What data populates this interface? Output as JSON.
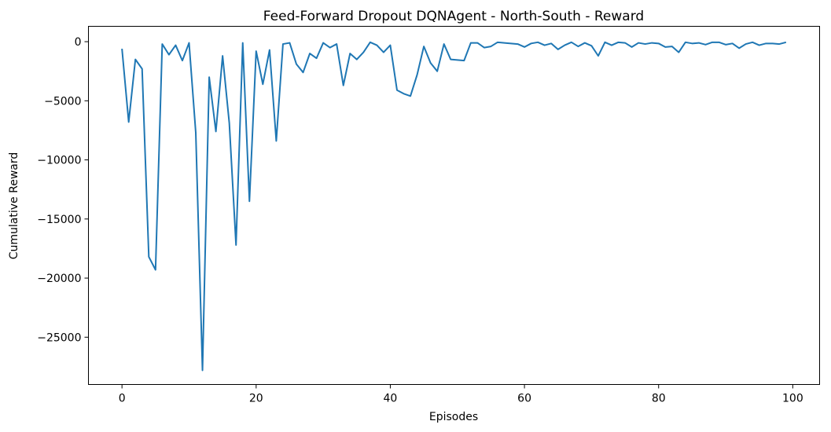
{
  "chart_data": {
    "type": "line",
    "title": "Feed-Forward Dropout DQNAgent - North-South - Reward",
    "xlabel": "Episodes",
    "ylabel": "Cumulative Reward",
    "xlim": [
      -5,
      104
    ],
    "ylim": [
      -29000,
      1300
    ],
    "xticks": [
      0,
      20,
      40,
      60,
      80,
      100
    ],
    "yticks": [
      0,
      -5000,
      -10000,
      -15000,
      -20000,
      -25000
    ],
    "xtick_labels": [
      "0",
      "20",
      "40",
      "60",
      "80",
      "100"
    ],
    "ytick_labels": [
      "0",
      "−5000",
      "−10000",
      "−15000",
      "−20000",
      "−25000"
    ],
    "grid": false,
    "line_color": "#1f77b4",
    "series": [
      {
        "x": [
          0,
          1,
          2,
          3,
          4,
          5,
          6,
          7,
          8,
          9,
          10,
          11,
          12,
          13,
          14,
          15,
          16,
          17,
          18,
          19,
          20,
          21,
          22,
          23,
          24,
          25,
          26,
          27,
          28,
          29,
          30,
          31,
          32,
          33,
          34,
          35,
          36,
          37,
          38,
          39,
          40,
          41,
          42,
          43,
          44,
          45,
          46,
          47,
          48,
          49,
          50,
          51,
          52,
          53,
          54,
          55,
          56,
          57,
          58,
          59,
          60,
          61,
          62,
          63,
          64,
          65,
          66,
          67,
          68,
          69,
          70,
          71,
          72,
          73,
          74,
          75,
          76,
          77,
          78,
          79,
          80,
          81,
          82,
          83,
          84,
          85,
          86,
          87,
          88,
          89,
          90,
          91,
          92,
          93,
          94,
          95,
          96,
          97,
          98,
          99
        ],
        "values": [
          -600,
          -6800,
          -1500,
          -2300,
          -18200,
          -19300,
          -200,
          -1100,
          -300,
          -1600,
          -100,
          -7700,
          -27800,
          -3000,
          -7600,
          -1200,
          -6900,
          -17200,
          -100,
          -13500,
          -800,
          -3600,
          -700,
          -8400,
          -200,
          -100,
          -1900,
          -2600,
          -1000,
          -1400,
          -100,
          -500,
          -200,
          -3700,
          -1000,
          -1500,
          -900,
          -50,
          -300,
          -900,
          -300,
          -4100,
          -4400,
          -4600,
          -2800,
          -400,
          -1800,
          -2500,
          -200,
          -1500,
          -1550,
          -1600,
          -100,
          -100,
          -500,
          -400,
          -50,
          -100,
          -150,
          -200,
          -450,
          -150,
          -50,
          -300,
          -150,
          -650,
          -300,
          -50,
          -400,
          -100,
          -350,
          -1200,
          -50,
          -300,
          -50,
          -100,
          -450,
          -100,
          -200,
          -100,
          -150,
          -450,
          -400,
          -900,
          -50,
          -150,
          -100,
          -250,
          -50,
          -50,
          -250,
          -150,
          -550,
          -200,
          -50,
          -300,
          -150,
          -150,
          -200,
          -50
        ]
      }
    ]
  }
}
